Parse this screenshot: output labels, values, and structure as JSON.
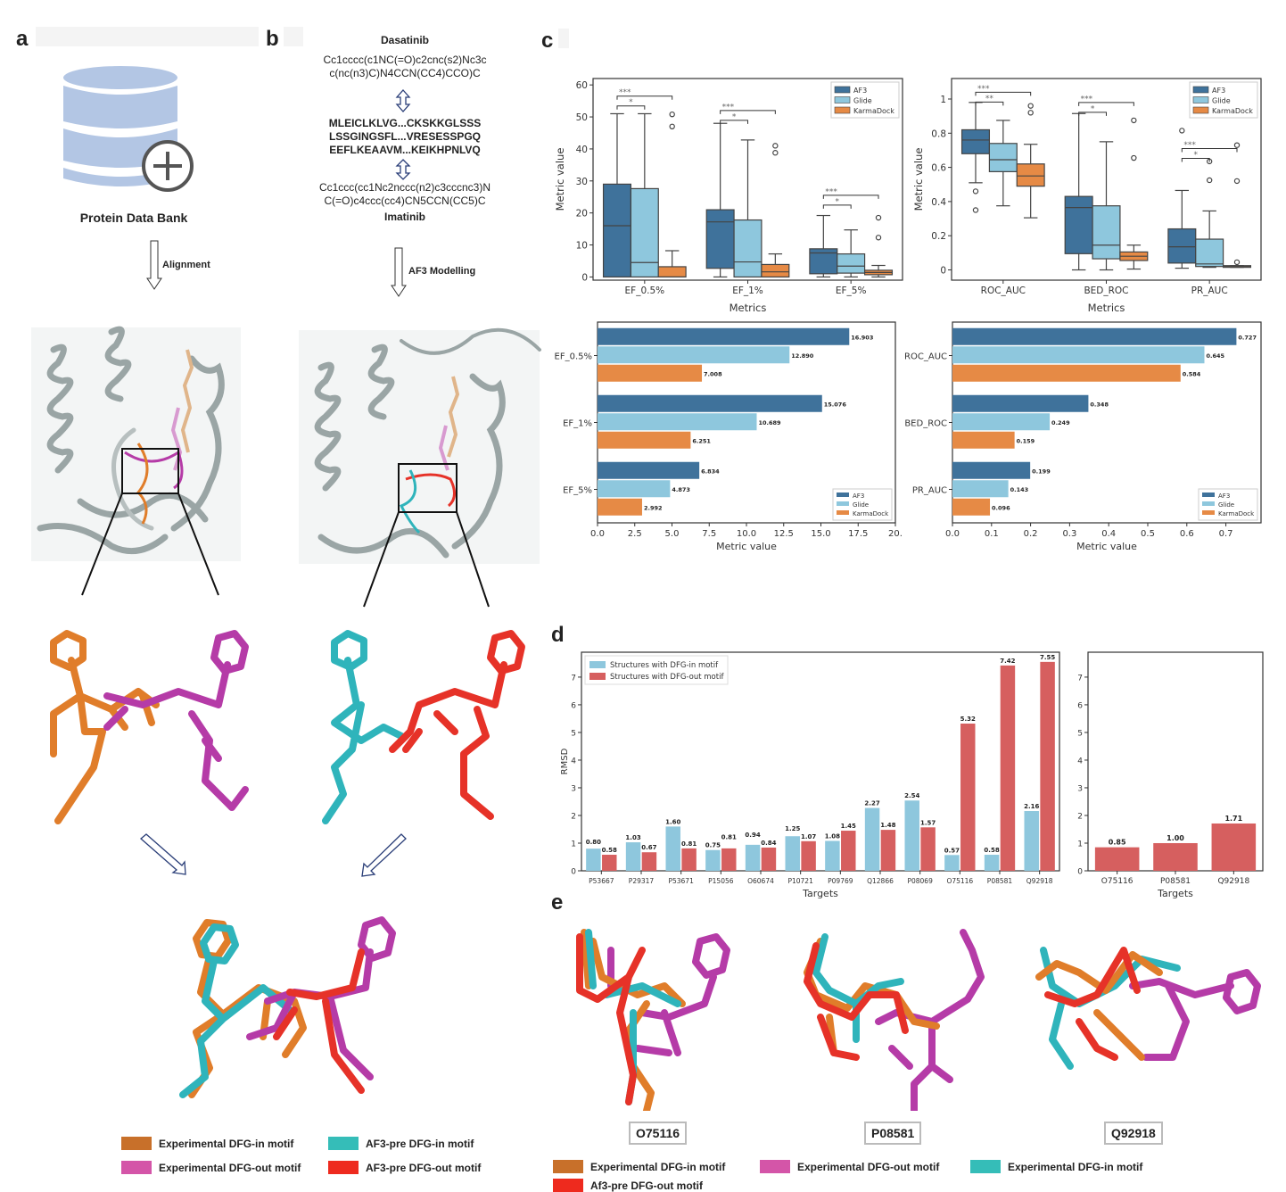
{
  "panels": {
    "a": {
      "letter": "a",
      "db_label": "Protein Data Bank",
      "arrow_label": "Alignment"
    },
    "b": {
      "letter": "b",
      "ligand1_name": "Dasatinib",
      "ligand1_smiles": [
        "Cc1cccc(c1NC(=O)c2cnc(s2)Nc3c",
        "c(nc(n3)C)N4CCN(CC4)CCO)C"
      ],
      "sequences": [
        "MLEICLKLVG...CKSKKGLSSS",
        "LSSGINGSFL...VRESESSPGQ",
        "EEFLKEAAVM...KEIKHPNLVQ"
      ],
      "ligand2_smiles": [
        "Cc1ccc(cc1Nc2nccc(n2)c3cccnc3)N",
        "C(=O)c4ccc(cc4)CN5CCN(CC5)C"
      ],
      "ligand2_name": "Imatinib",
      "arrow_label": "AF3 Modelling"
    },
    "c": {
      "letter": "c"
    },
    "d": {
      "letter": "d"
    },
    "e": {
      "letter": "e",
      "targets": [
        "O75116",
        "P08581",
        "Q92918"
      ],
      "legend": [
        {
          "label": "Experimental DFG-in motif",
          "color": "#c8702a"
        },
        {
          "label": "Experimental DFG-out motif",
          "color": "#d455a8"
        },
        {
          "label": "Experimental DFG-in motif",
          "color": "#35bdb8"
        },
        {
          "label": "Af3-pre DFG-out motif",
          "color": "#ee2a1e"
        }
      ]
    },
    "ab_legend": [
      {
        "label": "Experimental DFG-in motif",
        "color": "#c8702a"
      },
      {
        "label": "AF3-pre DFG-in motif",
        "color": "#35bdb8"
      },
      {
        "label": "Experimental DFG-out motif",
        "color": "#d455a8"
      },
      {
        "label": "AF3-pre DFG-out motif",
        "color": "#ee2a1e"
      }
    ]
  },
  "colors": {
    "AF3": "#3f729b",
    "Glide": "#8ec7dd",
    "KarmaDock": "#e68a45",
    "dfg_in": "#8ec7dd",
    "dfg_out": "#d65f5f"
  },
  "chart_data": [
    {
      "id": "c1",
      "type": "box",
      "xlabel": "Metrics",
      "ylabel": "Metric value",
      "categories": [
        "EF_0.5%",
        "EF_1%",
        "EF_5%"
      ],
      "ylim": [
        -1,
        62
      ],
      "yticks": [
        0,
        10,
        20,
        30,
        40,
        50,
        60
      ],
      "legend": [
        "AF3",
        "Glide",
        "KarmaDock"
      ],
      "legend_position": "top-right",
      "series": [
        {
          "name": "AF3",
          "boxes": [
            {
              "whislo": 0,
              "q1": 0,
              "med": 16,
              "q3": 29,
              "whishi": 51,
              "fliers": []
            },
            {
              "whislo": 0,
              "q1": 2.7,
              "med": 17.2,
              "q3": 21,
              "whishi": 48,
              "fliers": []
            },
            {
              "whislo": 0,
              "q1": 1,
              "med": 7.5,
              "q3": 8.8,
              "whishi": 19.2,
              "fliers": []
            }
          ]
        },
        {
          "name": "Glide",
          "boxes": [
            {
              "whislo": 0,
              "q1": 0,
              "med": 4.5,
              "q3": 27.6,
              "whishi": 51,
              "fliers": []
            },
            {
              "whislo": 0,
              "q1": 0,
              "med": 4.7,
              "q3": 17.8,
              "whishi": 42.8,
              "fliers": []
            },
            {
              "whislo": 0,
              "q1": 1.2,
              "med": 3.4,
              "q3": 7.2,
              "whishi": 14.7,
              "fliers": []
            }
          ]
        },
        {
          "name": "KarmaDock",
          "boxes": [
            {
              "whislo": 0,
              "q1": 0,
              "med": 0,
              "q3": 3.2,
              "whishi": 8.2,
              "fliers": [
                47,
                50.8
              ]
            },
            {
              "whislo": 0,
              "q1": 0,
              "med": 1.6,
              "q3": 3.9,
              "whishi": 7.2,
              "fliers": [
                38.8,
                41
              ]
            },
            {
              "whislo": 0,
              "q1": 0.7,
              "med": 1.4,
              "q3": 2.1,
              "whishi": 3.6,
              "fliers": [
                12.3,
                18.5
              ]
            }
          ]
        }
      ],
      "significance": [
        {
          "group": 0,
          "label": "***",
          "from": "AF3",
          "to": "KarmaDock",
          "y": 56.5
        },
        {
          "group": 0,
          "label": "*",
          "from": "AF3",
          "to": "Glide",
          "y": 54.5
        },
        {
          "group": 1,
          "label": "***",
          "from": "AF3",
          "to": "KarmaDock",
          "y": 52
        },
        {
          "group": 1,
          "label": "*",
          "from": "AF3",
          "to": "Glide",
          "y": 50.2
        },
        {
          "group": 2,
          "label": "***",
          "from": "AF3",
          "to": "KarmaDock",
          "y": 25.5
        },
        {
          "group": 2,
          "label": "*",
          "from": "AF3",
          "to": "Glide",
          "y": 23.7
        }
      ]
    },
    {
      "id": "c2",
      "type": "box",
      "xlabel": "Metrics",
      "ylabel": "Metric value",
      "categories": [
        "ROC_AUC",
        "BED_ROC",
        "PR_AUC"
      ],
      "ylim": [
        -0.06,
        1.12
      ],
      "yticks": [
        0.0,
        0.2,
        0.4,
        0.6,
        0.8,
        1.0
      ],
      "legend": [
        "AF3",
        "Glide",
        "KarmaDock"
      ],
      "legend_position": "top-right",
      "series": [
        {
          "name": "AF3",
          "boxes": [
            {
              "whislo": 0.51,
              "q1": 0.68,
              "med": 0.76,
              "q3": 0.82,
              "whishi": 0.98,
              "fliers": [
                0.35,
                0.46
              ]
            },
            {
              "whislo": 0,
              "q1": 0.095,
              "med": 0.365,
              "q3": 0.43,
              "whishi": 0.915,
              "fliers": []
            },
            {
              "whislo": 0.01,
              "q1": 0.04,
              "med": 0.135,
              "q3": 0.24,
              "whishi": 0.465,
              "fliers": [
                0.815
              ]
            }
          ]
        },
        {
          "name": "Glide",
          "boxes": [
            {
              "whislo": 0.375,
              "q1": 0.575,
              "med": 0.645,
              "q3": 0.74,
              "whishi": 0.875,
              "fliers": []
            },
            {
              "whislo": 0,
              "q1": 0.065,
              "med": 0.145,
              "q3": 0.375,
              "whishi": 0.75,
              "fliers": []
            },
            {
              "whislo": 0.015,
              "q1": 0.02,
              "med": 0.035,
              "q3": 0.18,
              "whishi": 0.345,
              "fliers": [
                0.525,
                0.635
              ]
            }
          ]
        },
        {
          "name": "KarmaDock",
          "boxes": [
            {
              "whislo": 0.305,
              "q1": 0.49,
              "med": 0.55,
              "q3": 0.62,
              "whishi": 0.735,
              "fliers": [
                0.92,
                0.96
              ]
            },
            {
              "whislo": 0.005,
              "q1": 0.055,
              "med": 0.08,
              "q3": 0.105,
              "whishi": 0.145,
              "fliers": [
                0.655,
                0.875
              ]
            },
            {
              "whislo": 0.015,
              "q1": 0.015,
              "med": 0.02,
              "q3": 0.025,
              "whishi": 0.025,
              "fliers": [
                0.045,
                0.52,
                0.73
              ]
            }
          ]
        }
      ],
      "significance": [
        {
          "group": 0,
          "label": "***",
          "from": "AF3",
          "to": "KarmaDock",
          "y": 1.04
        },
        {
          "group": 0,
          "label": "**",
          "from": "AF3",
          "to": "Glide",
          "y": 1.0
        },
        {
          "group": 1,
          "label": "***",
          "from": "AF3",
          "to": "KarmaDock",
          "y": 0.98
        },
        {
          "group": 1,
          "label": "*",
          "from": "AF3",
          "to": "Glide",
          "y": 0.94
        },
        {
          "group": 2,
          "label": "***",
          "from": "AF3",
          "to": "KarmaDock",
          "y": 0.71
        },
        {
          "group": 2,
          "label": "*",
          "from": "AF3",
          "to": "Glide",
          "y": 0.67
        }
      ]
    },
    {
      "id": "c3",
      "type": "bar",
      "orientation": "horizontal",
      "xlabel": "Metric value",
      "categories": [
        "EF_0.5%",
        "EF_1%",
        "EF_5%"
      ],
      "xlim": [
        0,
        20
      ],
      "xticks": [
        0.0,
        2.5,
        5.0,
        7.5,
        10.0,
        12.5,
        15.0,
        17.5,
        20.0
      ],
      "xtick_labels": [
        "0.0",
        "2.5",
        "5.0",
        "7.5",
        "10.0",
        "12.5",
        "15.0",
        "17.5",
        "20."
      ],
      "legend_position": "bottom-right",
      "series": [
        {
          "name": "AF3",
          "values": [
            16.903,
            15.076,
            6.834
          ],
          "labels": [
            "16.903",
            "15.076",
            "6.834"
          ]
        },
        {
          "name": "Glide",
          "values": [
            12.89,
            10.689,
            4.873
          ],
          "labels": [
            "12.890",
            "10.689",
            "4.873"
          ]
        },
        {
          "name": "KarmaDock",
          "values": [
            7.008,
            6.251,
            2.992
          ],
          "labels": [
            "7.008",
            "6.251",
            "2.992"
          ]
        }
      ]
    },
    {
      "id": "c4",
      "type": "bar",
      "orientation": "horizontal",
      "xlabel": "Metric value",
      "categories": [
        "ROC_AUC",
        "BED_ROC",
        "PR_AUC"
      ],
      "xlim": [
        0,
        0.79
      ],
      "xticks": [
        0.0,
        0.1,
        0.2,
        0.3,
        0.4,
        0.5,
        0.6,
        0.7
      ],
      "xtick_labels": [
        "0.0",
        "0.1",
        "0.2",
        "0.3",
        "0.4",
        "0.5",
        "0.6",
        "0.7"
      ],
      "legend_position": "bottom-right",
      "series": [
        {
          "name": "AF3",
          "values": [
            0.727,
            0.348,
            0.199
          ],
          "labels": [
            "0.727",
            "0.348",
            "0.199"
          ]
        },
        {
          "name": "Glide",
          "values": [
            0.645,
            0.249,
            0.143
          ],
          "labels": [
            "0.645",
            "0.249",
            "0.143"
          ]
        },
        {
          "name": "KarmaDock",
          "values": [
            0.584,
            0.159,
            0.096
          ],
          "labels": [
            "0.584",
            "0.159",
            "0.096"
          ]
        }
      ]
    },
    {
      "id": "d1",
      "type": "bar",
      "xlabel": "Targets",
      "ylabel": "RMSD",
      "categories": [
        "P53667",
        "P29317",
        "P53671",
        "P15056",
        "O60674",
        "P10721",
        "P09769",
        "Q12866",
        "P08069",
        "O75116",
        "P08581",
        "Q92918"
      ],
      "ylim": [
        0,
        7.9
      ],
      "yticks": [
        0,
        1,
        2,
        3,
        4,
        5,
        6,
        7
      ],
      "legend_position": "top-left",
      "series": [
        {
          "name": "Structures with DFG-in motif",
          "values": [
            0.8,
            1.03,
            1.6,
            0.75,
            0.94,
            1.25,
            1.08,
            2.27,
            2.54,
            0.57,
            0.58,
            2.16
          ],
          "labels": [
            "0.80",
            "1.03",
            "1.60",
            "0.75",
            "0.94",
            "1.25",
            "1.08",
            "2.27",
            "2.54",
            "0.57",
            "0.58",
            "2.16"
          ]
        },
        {
          "name": "Structures with DFG-out motif",
          "values": [
            0.58,
            0.67,
            0.81,
            0.81,
            0.84,
            1.07,
            1.45,
            1.48,
            1.57,
            5.32,
            7.42,
            7.55
          ],
          "labels": [
            "0.58",
            "0.67",
            "0.81",
            "0.81",
            "0.84",
            "1.07",
            "1.45",
            "1.48",
            "1.57",
            "5.32",
            "7.42",
            "7.55"
          ]
        }
      ]
    },
    {
      "id": "d2",
      "type": "bar",
      "xlabel": "Targets",
      "categories": [
        "O75116",
        "P08581",
        "Q92918"
      ],
      "ylim": [
        0,
        7.9
      ],
      "yticks": [
        0,
        1,
        2,
        3,
        4,
        5,
        6,
        7
      ],
      "series": [
        {
          "name": "DFG-out",
          "values": [
            0.85,
            1.0,
            1.71
          ],
          "labels": [
            "0.85",
            "1.00",
            "1.71"
          ]
        }
      ]
    }
  ]
}
